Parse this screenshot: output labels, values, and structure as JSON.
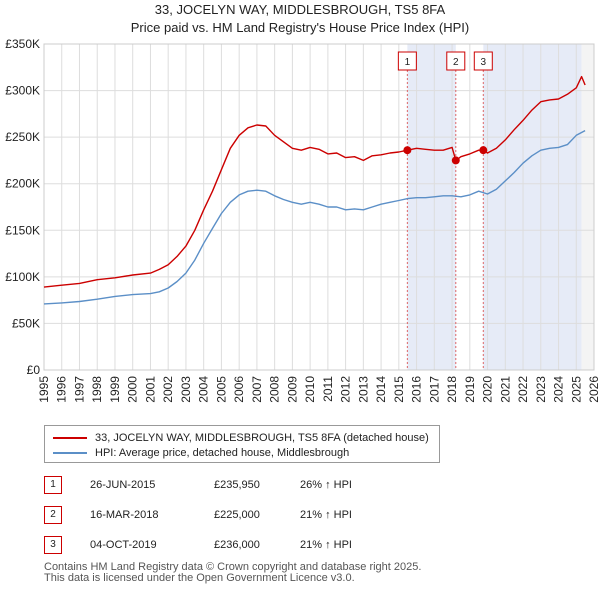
{
  "chart_data": {
    "type": "line",
    "title": "33, JOCELYN WAY, MIDDLESBROUGH, TS5 8FA",
    "subtitle": "Price paid vs. HM Land Registry's House Price Index (HPI)",
    "xlim": [
      1995,
      2026
    ],
    "ylim": [
      0,
      350000
    ],
    "x_ticks": [
      "1995",
      "1996",
      "1997",
      "1998",
      "1999",
      "2000",
      "2001",
      "2002",
      "2003",
      "2004",
      "2005",
      "2006",
      "2007",
      "2008",
      "2009",
      "2010",
      "2011",
      "2012",
      "2013",
      "2014",
      "2015",
      "2016",
      "2017",
      "2018",
      "2019",
      "2020",
      "2021",
      "2022",
      "2023",
      "2024",
      "2025",
      "2026"
    ],
    "y_ticks": [
      {
        "value": 0,
        "label": "£0"
      },
      {
        "value": 50000,
        "label": "£50K"
      },
      {
        "value": 100000,
        "label": "£100K"
      },
      {
        "value": 150000,
        "label": "£150K"
      },
      {
        "value": 200000,
        "label": "£200K"
      },
      {
        "value": 250000,
        "label": "£250K"
      },
      {
        "value": 300000,
        "label": "£300K"
      },
      {
        "value": 350000,
        "label": "£350K"
      }
    ],
    "series": [
      {
        "name": "33, JOCELYN WAY, MIDDLESBROUGH, TS5 8FA (detached house)",
        "color": "#cc0000",
        "x": [
          1995.0,
          1996.0,
          1997.0,
          1998.0,
          1999.0,
          2000.0,
          2001.0,
          2001.5,
          2002.0,
          2002.5,
          2003.0,
          2003.5,
          2004.0,
          2004.5,
          2005.0,
          2005.5,
          2006.0,
          2006.5,
          2007.0,
          2007.5,
          2008.0,
          2008.5,
          2009.0,
          2009.5,
          2010.0,
          2010.5,
          2011.0,
          2011.5,
          2012.0,
          2012.5,
          2013.0,
          2013.5,
          2014.0,
          2014.5,
          2015.0,
          2015.48,
          2016.0,
          2016.5,
          2017.0,
          2017.5,
          2018.0,
          2018.21,
          2018.5,
          2019.0,
          2019.5,
          2019.76,
          2020.0,
          2020.5,
          2021.0,
          2021.5,
          2022.0,
          2022.5,
          2023.0,
          2023.5,
          2024.0,
          2024.5,
          2025.0,
          2025.3,
          2025.5
        ],
        "y": [
          89000,
          91000,
          93000,
          97000,
          99000,
          102000,
          104000,
          108000,
          113000,
          122000,
          133000,
          150000,
          172000,
          192000,
          215000,
          238000,
          252000,
          260000,
          263000,
          262000,
          252000,
          245000,
          238000,
          236000,
          239000,
          237000,
          232000,
          233000,
          228000,
          229000,
          225000,
          230000,
          231000,
          233000,
          234000,
          235950,
          238000,
          237000,
          236000,
          236000,
          239000,
          225000,
          229000,
          232000,
          236000,
          236000,
          233000,
          238000,
          247000,
          258000,
          268000,
          279000,
          288000,
          290000,
          291000,
          296000,
          303000,
          315000,
          306000
        ]
      },
      {
        "name": "HPI: Average price, detached house, Middlesbrough",
        "color": "#5b8fc7",
        "x": [
          1995.0,
          1996.0,
          1997.0,
          1998.0,
          1999.0,
          2000.0,
          2001.0,
          2001.5,
          2002.0,
          2002.5,
          2003.0,
          2003.5,
          2004.0,
          2004.5,
          2005.0,
          2005.5,
          2006.0,
          2006.5,
          2007.0,
          2007.5,
          2008.0,
          2008.5,
          2009.0,
          2009.5,
          2010.0,
          2010.5,
          2011.0,
          2011.5,
          2012.0,
          2012.5,
          2013.0,
          2013.5,
          2014.0,
          2014.5,
          2015.0,
          2015.5,
          2016.0,
          2016.5,
          2017.0,
          2017.5,
          2018.0,
          2018.5,
          2019.0,
          2019.5,
          2020.0,
          2020.5,
          2021.0,
          2021.5,
          2022.0,
          2022.5,
          2023.0,
          2023.5,
          2024.0,
          2024.5,
          2025.0,
          2025.5
        ],
        "y": [
          71000,
          72000,
          73500,
          76000,
          79000,
          81000,
          82000,
          84000,
          88000,
          95000,
          104000,
          118000,
          136000,
          152000,
          168000,
          180000,
          188000,
          192000,
          193000,
          192000,
          187000,
          183000,
          180000,
          178000,
          180000,
          178000,
          175000,
          175000,
          172000,
          173000,
          172000,
          175000,
          178000,
          180000,
          182000,
          184000,
          185000,
          185000,
          186000,
          187000,
          187000,
          186000,
          188000,
          192000,
          189000,
          194000,
          203000,
          212000,
          222000,
          230000,
          236000,
          238000,
          239000,
          242000,
          252000,
          257000
        ]
      }
    ],
    "transactions": [
      {
        "marker": "1",
        "x": 2015.48,
        "y": 235950
      },
      {
        "marker": "2",
        "x": 2018.21,
        "y": 225000
      },
      {
        "marker": "3",
        "x": 2019.76,
        "y": 236000
      }
    ]
  },
  "legend": {
    "property": "33, JOCELYN WAY, MIDDLESBROUGH, TS5 8FA (detached house)",
    "hpi": "HPI: Average price, detached house, Middlesbrough",
    "property_color": "#cc0000",
    "hpi_color": "#5b8fc7"
  },
  "sales_table": [
    {
      "marker": "1",
      "date": "26-JUN-2015",
      "price": "£235,950",
      "hpi": "26% ↑ HPI"
    },
    {
      "marker": "2",
      "date": "16-MAR-2018",
      "price": "£225,000",
      "hpi": "21% ↑ HPI"
    },
    {
      "marker": "3",
      "date": "04-OCT-2019",
      "price": "£236,000",
      "hpi": "21% ↑ HPI"
    }
  ],
  "footer": {
    "line1": "Contains HM Land Registry data © Crown copyright and database right 2025.",
    "line2": "This data is licensed under the Open Government Licence v3.0."
  }
}
